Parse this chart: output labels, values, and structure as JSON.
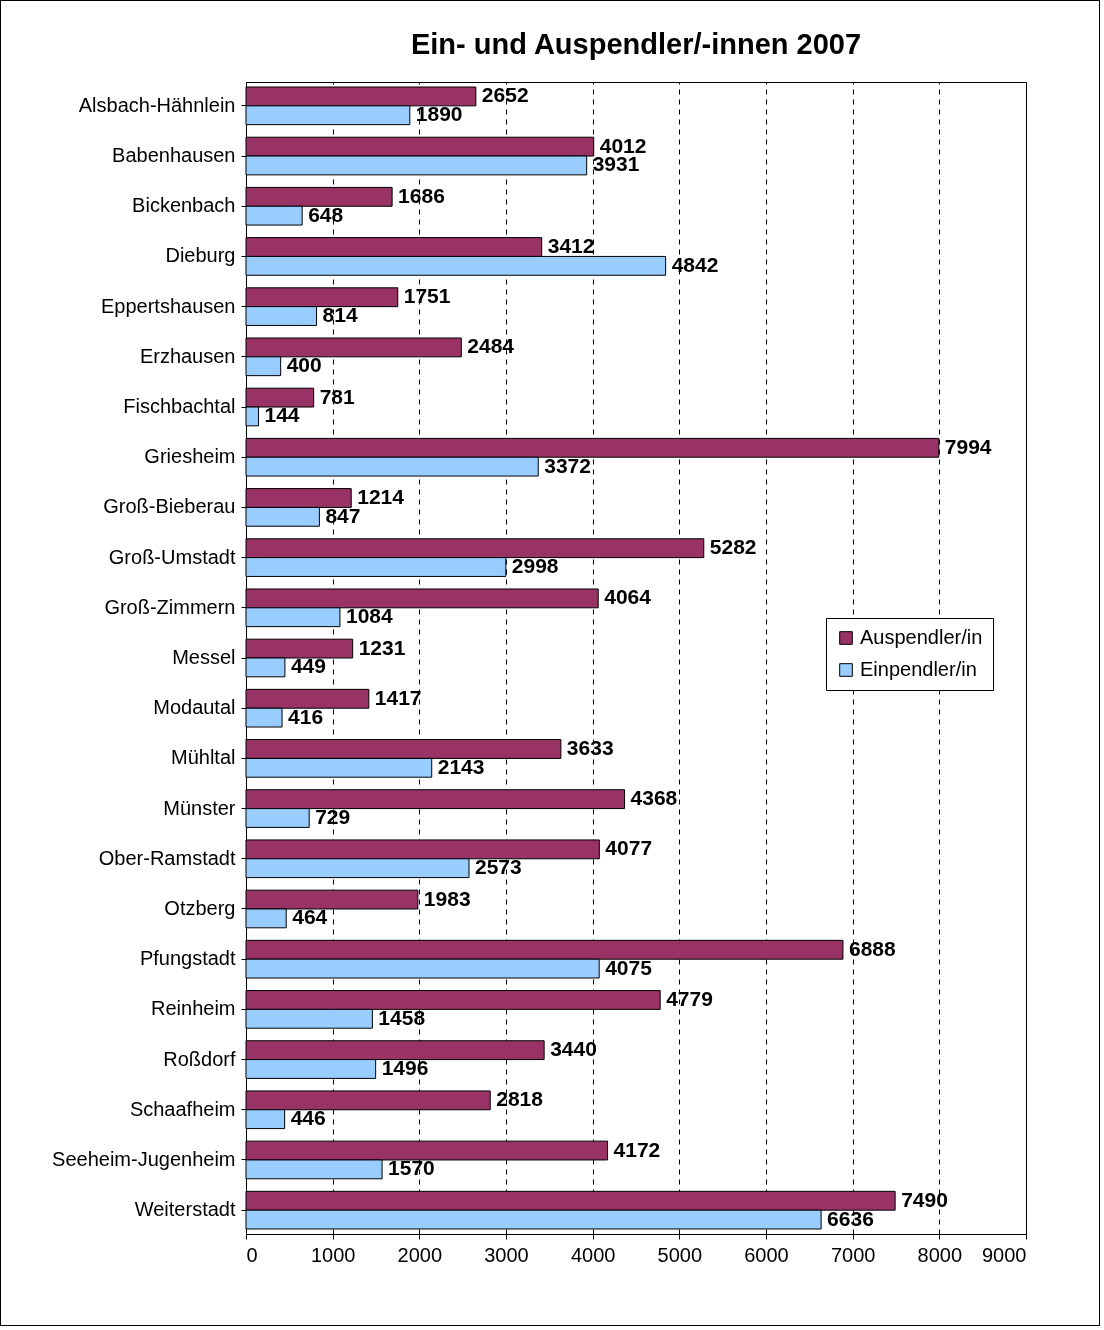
{
  "chart_data": {
    "type": "bar",
    "orientation": "horizontal",
    "title": "Ein- und Auspendler/-innen 2007",
    "categories": [
      "Alsbach-Hähnlein",
      "Babenhausen",
      "Bickenbach",
      "Dieburg",
      "Eppertshausen",
      "Erzhausen",
      "Fischbachtal",
      "Griesheim",
      "Groß-Bieberau",
      "Groß-Umstadt",
      "Groß-Zimmern",
      "Messel",
      "Modautal",
      "Mühltal",
      "Münster",
      "Ober-Ramstadt",
      "Otzberg",
      "Pfungstadt",
      "Reinheim",
      "Roßdorf",
      "Schaafheim",
      "Seeheim-Jugenheim",
      "Weiterstadt"
    ],
    "series": [
      {
        "name": "Auspendler/in",
        "color": "#993366",
        "values": [
          2652,
          4012,
          1686,
          3412,
          1751,
          2484,
          781,
          7994,
          1214,
          5282,
          4064,
          1231,
          1417,
          3633,
          4368,
          4077,
          1983,
          6888,
          4779,
          3440,
          2818,
          4172,
          7490
        ]
      },
      {
        "name": "Einpendler/in",
        "color": "#99ccff",
        "values": [
          1890,
          3931,
          648,
          4842,
          814,
          400,
          144,
          3372,
          847,
          2998,
          1084,
          449,
          416,
          2143,
          729,
          2573,
          464,
          4075,
          1458,
          1496,
          446,
          1570,
          6636
        ]
      }
    ],
    "xlim": [
      0,
      9000
    ],
    "xticks": [
      0,
      1000,
      2000,
      3000,
      4000,
      5000,
      6000,
      7000,
      8000,
      9000
    ],
    "grid": "x",
    "legend": "right",
    "data_labels": true
  }
}
